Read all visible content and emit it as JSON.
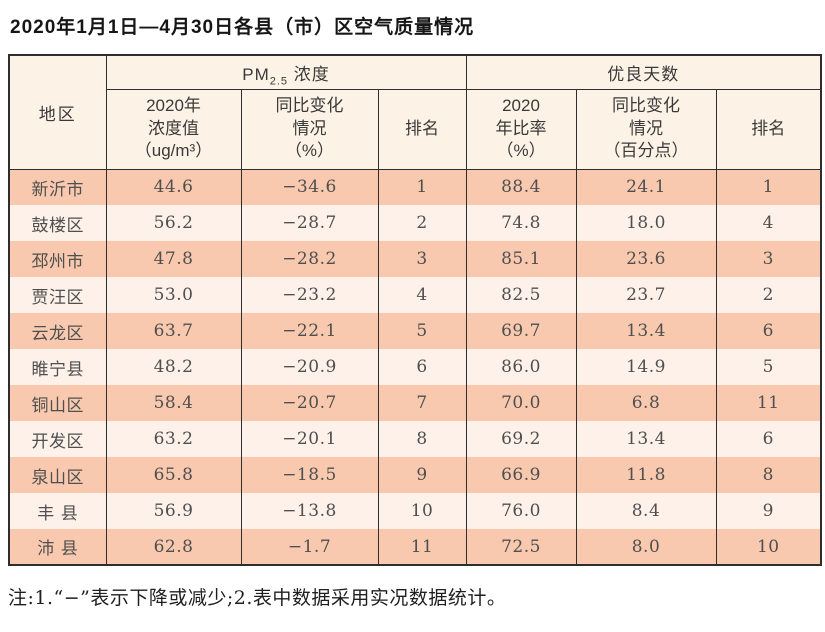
{
  "title": "2020年1月1日—4月30日各县（市）区空气质量情况",
  "colors": {
    "row_dark": "#f8c9ae",
    "row_light": "#fdf1ea",
    "header_bg": "#fdf2e6",
    "border": "#2e2e2e"
  },
  "table": {
    "region_header": "地区",
    "pm_group": {
      "pre": "PM",
      "sub": "2.5",
      "post": " 浓度"
    },
    "good_group": "优良天数",
    "subheads": [
      "2020年\n浓度值\n（ug/m³）",
      "同比变化\n情况\n（%）",
      "排名",
      "2020\n年比率\n（%）",
      "同比变化\n情况\n（百分点）",
      "排名"
    ],
    "rows": [
      {
        "region": "新沂市",
        "pm_value": "44.6",
        "pm_change": "−34.6",
        "pm_rank": "1",
        "good_rate": "88.4",
        "good_change": "24.1",
        "good_rank": "1"
      },
      {
        "region": "鼓楼区",
        "pm_value": "56.2",
        "pm_change": "−28.7",
        "pm_rank": "2",
        "good_rate": "74.8",
        "good_change": "18.0",
        "good_rank": "4"
      },
      {
        "region": "邳州市",
        "pm_value": "47.8",
        "pm_change": "−28.2",
        "pm_rank": "3",
        "good_rate": "85.1",
        "good_change": "23.6",
        "good_rank": "3"
      },
      {
        "region": "贾汪区",
        "pm_value": "53.0",
        "pm_change": "−23.2",
        "pm_rank": "4",
        "good_rate": "82.5",
        "good_change": "23.7",
        "good_rank": "2"
      },
      {
        "region": "云龙区",
        "pm_value": "63.7",
        "pm_change": "−22.1",
        "pm_rank": "5",
        "good_rate": "69.7",
        "good_change": "13.4",
        "good_rank": "6"
      },
      {
        "region": "睢宁县",
        "pm_value": "48.2",
        "pm_change": "−20.9",
        "pm_rank": "6",
        "good_rate": "86.0",
        "good_change": "14.9",
        "good_rank": "5"
      },
      {
        "region": "铜山区",
        "pm_value": "58.4",
        "pm_change": "−20.7",
        "pm_rank": "7",
        "good_rate": "70.0",
        "good_change": "6.8",
        "good_rank": "11"
      },
      {
        "region": "开发区",
        "pm_value": "63.2",
        "pm_change": "−20.1",
        "pm_rank": "8",
        "good_rate": "69.2",
        "good_change": "13.4",
        "good_rank": "6"
      },
      {
        "region": "泉山区",
        "pm_value": "65.8",
        "pm_change": "−18.5",
        "pm_rank": "9",
        "good_rate": "66.9",
        "good_change": "11.8",
        "good_rank": "8"
      },
      {
        "region": "丰 县",
        "pm_value": "56.9",
        "pm_change": "−13.8",
        "pm_rank": "10",
        "good_rate": "76.0",
        "good_change": "8.4",
        "good_rank": "9"
      },
      {
        "region": "沛 县",
        "pm_value": "62.8",
        "pm_change": "−1.7",
        "pm_rank": "11",
        "good_rate": "72.5",
        "good_change": "8.0",
        "good_rank": "10"
      }
    ]
  },
  "footnote": "注:1.“−”表示下降或减少;2.表中数据采用实况数据统计。"
}
